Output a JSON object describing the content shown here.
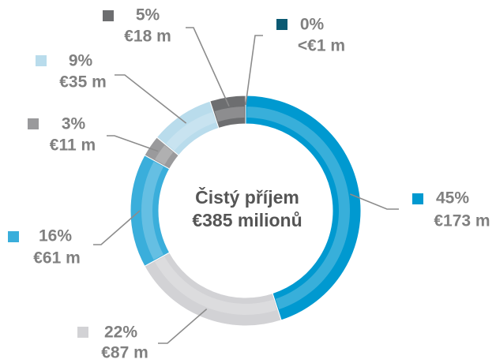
{
  "chart_data": {
    "type": "donut",
    "title": "Čistý příjem",
    "subtitle": "€385 milionů",
    "values": [
      0,
      45,
      22,
      16,
      3,
      9,
      5
    ],
    "value_labels": [
      "0%",
      "45%",
      "22%",
      "16%",
      "3%",
      "9%",
      "5%"
    ],
    "amount_labels": [
      "<€1 m",
      "€173 m",
      "€87 m",
      "€61 m",
      "€11 m",
      "€35 m",
      "€18 m"
    ],
    "colors": [
      "#0b5a73",
      "#0099d0",
      "#d2d2d5",
      "#3aaedb",
      "#9a9a9c",
      "#b9dcec",
      "#6d6e70"
    ]
  }
}
